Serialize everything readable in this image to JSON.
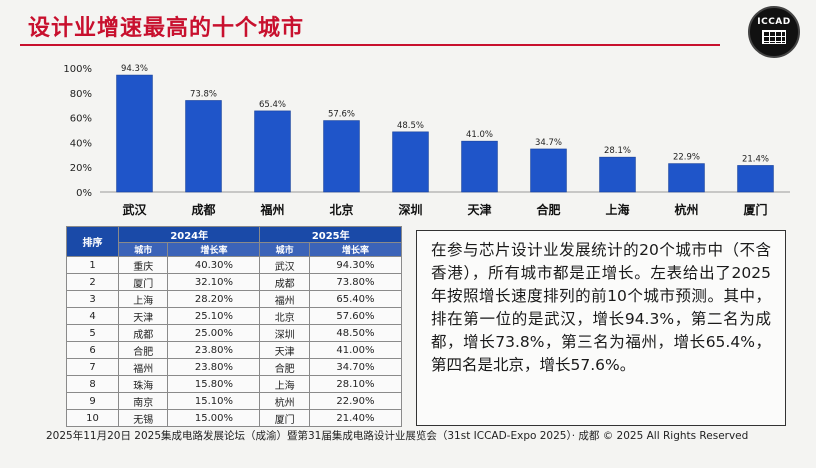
{
  "header": {
    "title": "设计业增速最高的十个城市",
    "logo_text": "ICCAD"
  },
  "chart_data": {
    "type": "bar",
    "categories": [
      "武汉",
      "成都",
      "福州",
      "北京",
      "深圳",
      "天津",
      "合肥",
      "上海",
      "杭州",
      "厦门"
    ],
    "values": [
      94.3,
      73.8,
      65.4,
      57.6,
      48.5,
      41.0,
      34.7,
      28.1,
      22.9,
      21.4
    ],
    "value_labels": [
      "94.3%",
      "73.8%",
      "65.4%",
      "57.6%",
      "48.5%",
      "41.0%",
      "34.7%",
      "28.1%",
      "22.9%",
      "21.4%"
    ],
    "ylim": [
      0,
      100
    ],
    "yticks": [
      "0%",
      "20%",
      "40%",
      "60%",
      "80%",
      "100%"
    ],
    "bar_color": "#1f55c9",
    "grid": false
  },
  "table": {
    "rank_header": "排序",
    "year_2024": "2024年",
    "year_2025": "2025年",
    "col_city": "城市",
    "col_growth": "增长率",
    "rows": [
      {
        "rank": "1",
        "city_2024": "重庆",
        "growth_2024": "40.30%",
        "city_2025": "武汉",
        "growth_2025": "94.30%"
      },
      {
        "rank": "2",
        "city_2024": "厦门",
        "growth_2024": "32.10%",
        "city_2025": "成都",
        "growth_2025": "73.80%"
      },
      {
        "rank": "3",
        "city_2024": "上海",
        "growth_2024": "28.20%",
        "city_2025": "福州",
        "growth_2025": "65.40%"
      },
      {
        "rank": "4",
        "city_2024": "天津",
        "growth_2024": "25.10%",
        "city_2025": "北京",
        "growth_2025": "57.60%"
      },
      {
        "rank": "5",
        "city_2024": "成都",
        "growth_2024": "25.00%",
        "city_2025": "深圳",
        "growth_2025": "48.50%"
      },
      {
        "rank": "6",
        "city_2024": "合肥",
        "growth_2024": "23.80%",
        "city_2025": "天津",
        "growth_2025": "41.00%"
      },
      {
        "rank": "7",
        "city_2024": "福州",
        "growth_2024": "23.80%",
        "city_2025": "合肥",
        "growth_2025": "34.70%"
      },
      {
        "rank": "8",
        "city_2024": "珠海",
        "growth_2024": "15.80%",
        "city_2025": "上海",
        "growth_2025": "28.10%"
      },
      {
        "rank": "9",
        "city_2024": "南京",
        "growth_2024": "15.10%",
        "city_2025": "杭州",
        "growth_2025": "22.90%"
      },
      {
        "rank": "10",
        "city_2024": "无锡",
        "growth_2024": "15.00%",
        "city_2025": "厦门",
        "growth_2025": "21.40%"
      }
    ]
  },
  "note": {
    "text": "在参与芯片设计业发展统计的20个城市中（不含香港），所有城市都是正增长。左表给出了2025年按照增长速度排列的前10个城市预测。其中，排在第一位的是武汉，增长94.3%，第二名为成都，增长73.8%，第三名为福州，增长65.4%，第四名是北京，增长57.6%。"
  },
  "footer": {
    "text": "2025年11月20日 2025集成电路发展论坛（成渝）暨第31届集成电路设计业展览会（31st ICCAD-Expo 2025）· 成都 © 2025 All Rights Reserved"
  }
}
